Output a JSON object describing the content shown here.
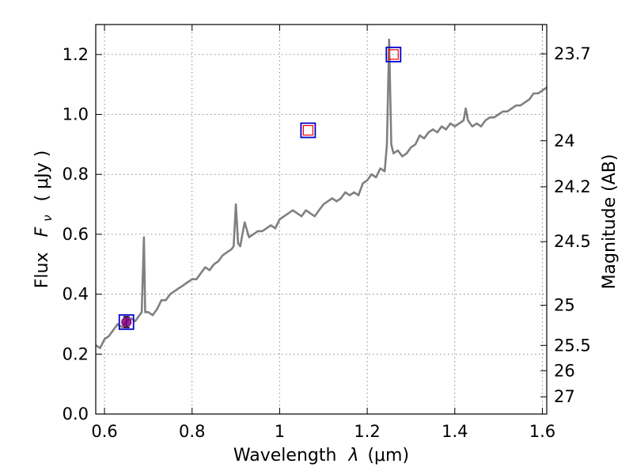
{
  "chart_data": {
    "type": "line",
    "xlabel": "Wavelength",
    "xlabel_symbol": "λ",
    "xlabel_unit": "(μm)",
    "ylabel": "Flux",
    "ylabel_symbol": "F",
    "ylabel_subscript": "ν",
    "ylabel_unit": "( μJy )",
    "y2label": "Magnitude (AB)",
    "xlim": [
      0.58,
      1.61
    ],
    "ylim": [
      0.0,
      1.3
    ],
    "grid": true,
    "x_ticks": [
      {
        "value": 0.6,
        "label": "0.6"
      },
      {
        "value": 0.8,
        "label": "0.8"
      },
      {
        "value": 1.0,
        "label": "1"
      },
      {
        "value": 1.2,
        "label": "1.2"
      },
      {
        "value": 1.4,
        "label": "1.4"
      },
      {
        "value": 1.6,
        "label": "1.6"
      }
    ],
    "y_ticks": [
      {
        "value": 0.0,
        "label": "0.0"
      },
      {
        "value": 0.2,
        "label": "0.2"
      },
      {
        "value": 0.4,
        "label": "0.4"
      },
      {
        "value": 0.6,
        "label": "0.6"
      },
      {
        "value": 0.8,
        "label": "0.8"
      },
      {
        "value": 1.0,
        "label": "1.0"
      },
      {
        "value": 1.2,
        "label": "1.2"
      }
    ],
    "y2_ticks": [
      {
        "value": 23.7,
        "label": "23.7"
      },
      {
        "value": 24.0,
        "label": "24"
      },
      {
        "value": 24.2,
        "label": "24.2"
      },
      {
        "value": 24.5,
        "label": "24.5"
      },
      {
        "value": 25.0,
        "label": "25"
      },
      {
        "value": 25.5,
        "label": "25.5"
      },
      {
        "value": 26.0,
        "label": "26"
      },
      {
        "value": 27.0,
        "label": "27"
      }
    ],
    "series": [
      {
        "color": "#808080",
        "x": [
          0.58,
          0.59,
          0.6,
          0.61,
          0.62,
          0.63,
          0.64,
          0.65,
          0.66,
          0.67,
          0.68,
          0.685,
          0.69,
          0.693,
          0.7,
          0.71,
          0.72,
          0.73,
          0.74,
          0.75,
          0.76,
          0.77,
          0.78,
          0.79,
          0.8,
          0.81,
          0.82,
          0.83,
          0.84,
          0.85,
          0.86,
          0.87,
          0.88,
          0.89,
          0.895,
          0.9,
          0.905,
          0.91,
          0.915,
          0.92,
          0.93,
          0.94,
          0.95,
          0.96,
          0.97,
          0.98,
          0.99,
          1.0,
          1.01,
          1.02,
          1.03,
          1.04,
          1.05,
          1.06,
          1.07,
          1.08,
          1.09,
          1.1,
          1.11,
          1.12,
          1.13,
          1.14,
          1.15,
          1.16,
          1.17,
          1.18,
          1.19,
          1.2,
          1.21,
          1.22,
          1.23,
          1.24,
          1.245,
          1.25,
          1.255,
          1.26,
          1.27,
          1.28,
          1.29,
          1.3,
          1.31,
          1.32,
          1.33,
          1.34,
          1.35,
          1.36,
          1.37,
          1.38,
          1.39,
          1.4,
          1.41,
          1.42,
          1.425,
          1.43,
          1.44,
          1.45,
          1.46,
          1.47,
          1.48,
          1.49,
          1.5,
          1.51,
          1.52,
          1.53,
          1.54,
          1.55,
          1.56,
          1.57,
          1.58,
          1.59,
          1.6,
          1.61
        ],
        "y": [
          0.23,
          0.22,
          0.25,
          0.26,
          0.28,
          0.3,
          0.29,
          0.31,
          0.32,
          0.31,
          0.33,
          0.34,
          0.59,
          0.34,
          0.34,
          0.33,
          0.35,
          0.38,
          0.38,
          0.4,
          0.41,
          0.42,
          0.43,
          0.44,
          0.45,
          0.45,
          0.47,
          0.49,
          0.48,
          0.5,
          0.51,
          0.53,
          0.54,
          0.55,
          0.56,
          0.7,
          0.57,
          0.56,
          0.6,
          0.64,
          0.59,
          0.6,
          0.61,
          0.61,
          0.62,
          0.63,
          0.62,
          0.65,
          0.66,
          0.67,
          0.68,
          0.67,
          0.66,
          0.68,
          0.67,
          0.66,
          0.68,
          0.7,
          0.71,
          0.72,
          0.71,
          0.72,
          0.74,
          0.73,
          0.74,
          0.73,
          0.77,
          0.78,
          0.8,
          0.79,
          0.82,
          0.81,
          0.9,
          1.25,
          0.9,
          0.87,
          0.88,
          0.86,
          0.87,
          0.89,
          0.9,
          0.93,
          0.92,
          0.94,
          0.95,
          0.94,
          0.96,
          0.95,
          0.97,
          0.96,
          0.97,
          0.98,
          1.02,
          0.98,
          0.96,
          0.97,
          0.96,
          0.98,
          0.99,
          0.99,
          1.0,
          1.01,
          1.01,
          1.02,
          1.03,
          1.03,
          1.04,
          1.05,
          1.07,
          1.07,
          1.08,
          1.09
        ]
      }
    ],
    "photometry_points": [
      {
        "x": 0.65,
        "y": 0.307,
        "marker": "square",
        "edge_color": "#0000cc",
        "face_color": "none"
      },
      {
        "x": 0.65,
        "y": 0.307,
        "marker": "circle",
        "face_color": "#800080",
        "edge_color": "#800080",
        "error": 0.018
      },
      {
        "x": 1.065,
        "y": 0.947,
        "marker": "square",
        "edge_color": "#0000cc",
        "face_color": "none"
      },
      {
        "x": 1.065,
        "y": 0.947,
        "marker": "square",
        "edge_color": "#ff0000",
        "face_color": "none",
        "small": true
      },
      {
        "x": 1.26,
        "y": 1.2,
        "marker": "square",
        "edge_color": "#0000cc",
        "face_color": "none"
      },
      {
        "x": 1.26,
        "y": 1.2,
        "marker": "square",
        "edge_color": "#ff0000",
        "face_color": "none",
        "small": true
      }
    ]
  }
}
